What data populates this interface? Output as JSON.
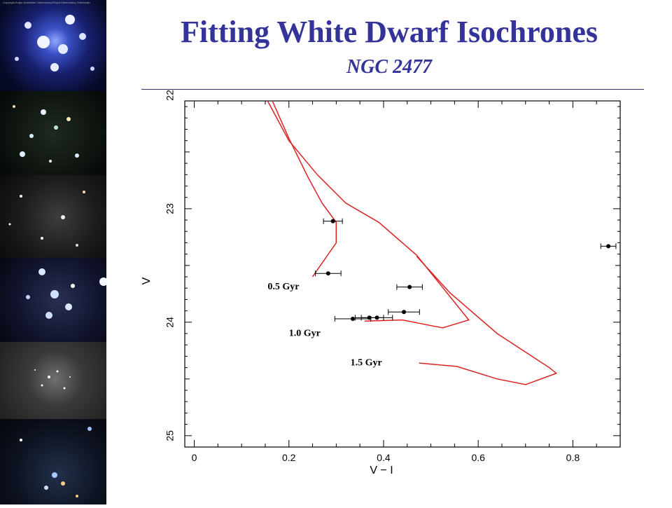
{
  "slide": {
    "title": "Fitting White Dwarf Isochrones",
    "subtitle": "NGC 2477",
    "title_color": "#333399",
    "accent_line_color": "#333366"
  },
  "image_strip": {
    "panels": [
      {
        "name": "star-cluster-photo-1",
        "credit": "Copyright Anglo-Australian Observatory/Royal Observatory, Edinburgh"
      },
      {
        "name": "star-cluster-photo-2"
      },
      {
        "name": "star-cluster-photo-3"
      },
      {
        "name": "star-cluster-photo-4"
      },
      {
        "name": "star-cluster-photo-5"
      },
      {
        "name": "star-cluster-photo-6"
      }
    ]
  },
  "chart_data": {
    "type": "scatter",
    "title": "",
    "xlabel": "V − I",
    "ylabel": "V",
    "xlim": [
      -0.02,
      0.9
    ],
    "ylim": [
      22.05,
      25.1
    ],
    "y_inverted": true,
    "xticks": [
      0,
      0.2,
      0.4,
      0.6,
      0.8
    ],
    "xtick_labels": [
      "0",
      "0.2",
      "0.4",
      "0.6",
      "0.8"
    ],
    "yticks": [
      22,
      23,
      24,
      25
    ],
    "ytick_labels": [
      "22",
      "23",
      "24",
      "25"
    ],
    "grid": false,
    "point_color": "#000000",
    "isochrone_color": "#dd2222",
    "points": [
      {
        "x": 0.293,
        "y": 23.11,
        "xerr": 0.02
      },
      {
        "x": 0.283,
        "y": 23.57,
        "xerr": 0.027
      },
      {
        "x": 0.455,
        "y": 23.69,
        "xerr": 0.027
      },
      {
        "x": 0.443,
        "y": 23.91,
        "xerr": 0.033
      },
      {
        "x": 0.37,
        "y": 23.96,
        "xerr": 0.03
      },
      {
        "x": 0.386,
        "y": 23.96,
        "xerr": 0.033
      },
      {
        "x": 0.335,
        "y": 23.97,
        "xerr": 0.038
      },
      {
        "x": 0.875,
        "y": 23.33,
        "xerr": 0.016
      }
    ],
    "isochrones": [
      {
        "label": "0.5 Gyr",
        "label_pos": [
          0.155,
          23.71
        ],
        "x": [
          0.165,
          0.2,
          0.24,
          0.27,
          0.3,
          0.3,
          0.25
        ],
        "y": [
          22.05,
          22.38,
          22.72,
          22.95,
          23.12,
          23.3,
          23.6
        ]
      },
      {
        "label": "1.0 Gyr",
        "label_pos": [
          0.2,
          24.12
        ],
        "x": [
          0.155,
          0.2,
          0.26,
          0.32,
          0.39,
          0.47,
          0.58,
          0.525,
          0.5,
          0.44,
          0.36
        ],
        "y": [
          22.05,
          22.4,
          22.7,
          22.95,
          23.12,
          23.41,
          23.98,
          24.05,
          24.03,
          23.98,
          23.99
        ]
      },
      {
        "label": "1.5 Gyr",
        "label_pos": [
          0.33,
          24.38
        ],
        "x": [
          0.47,
          0.54,
          0.64,
          0.75,
          0.765,
          0.7,
          0.64,
          0.555,
          0.475
        ],
        "y": [
          23.42,
          23.74,
          24.1,
          24.4,
          24.45,
          24.55,
          24.5,
          24.39,
          24.36
        ]
      }
    ]
  }
}
